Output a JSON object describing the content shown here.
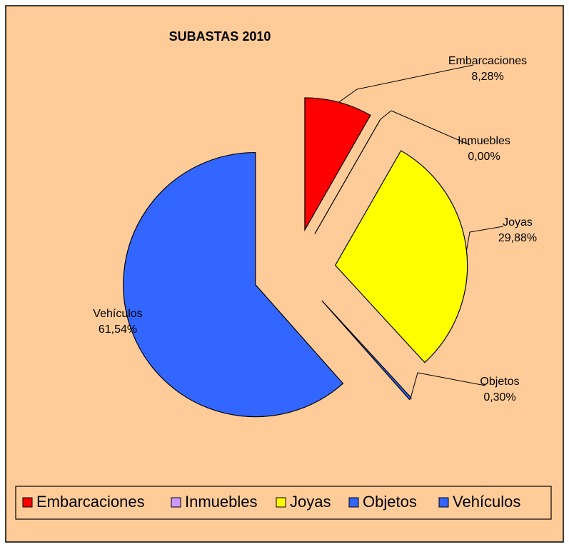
{
  "chart_data": {
    "type": "pie",
    "title": "SUBASTAS 2010",
    "categories": [
      "Embarcaciones",
      "Inmuebles",
      "Joyas",
      "Objetos",
      "Vehículos"
    ],
    "values": [
      8.28,
      0,
      29.88,
      0.3,
      61.54
    ],
    "value_labels": [
      "8,28%",
      "0,00%",
      "29,88%",
      "0,30%",
      "61,54%"
    ],
    "colors": [
      "#ff0000",
      "#cc99ff",
      "#ffff00",
      "#3366ff",
      "#3366ff"
    ],
    "legend": "bottom"
  }
}
